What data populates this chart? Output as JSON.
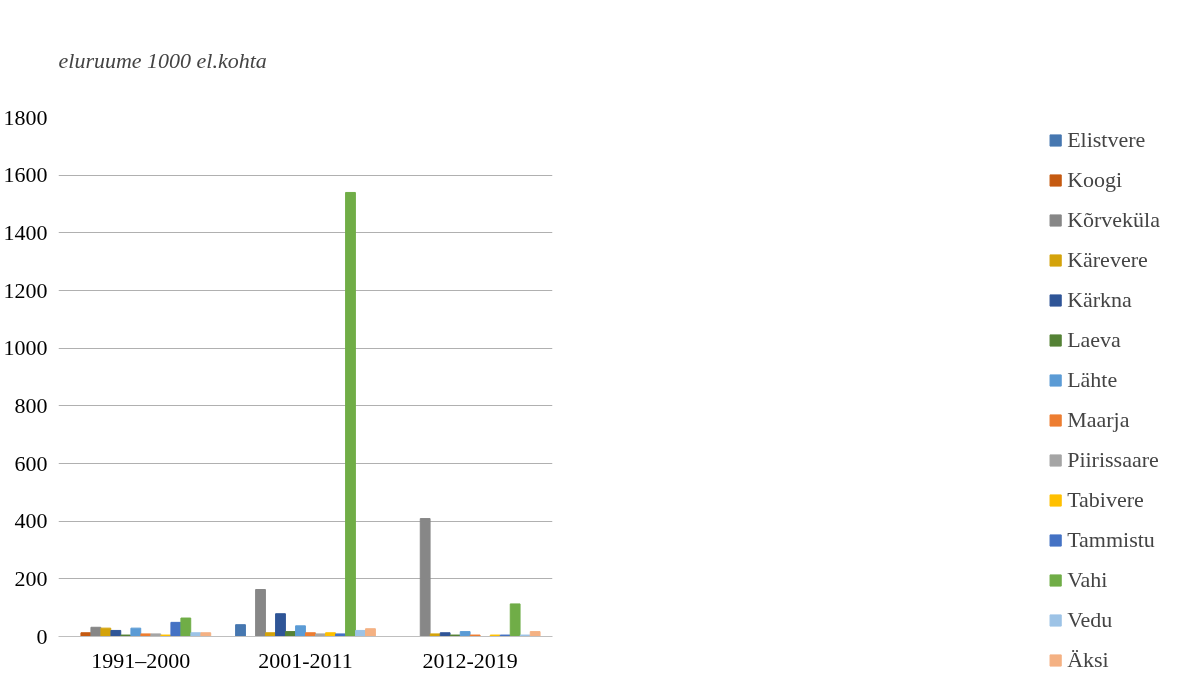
{
  "chart_data": {
    "type": "bar",
    "ylabel": "eluruume 1000 el.kohta",
    "categories": [
      "1991–2000",
      "2001-2011",
      "2012-2019"
    ],
    "series": [
      {
        "name": "Elistvere",
        "color": "#4677b0",
        "values": [
          0,
          41,
          0
        ]
      },
      {
        "name": "Koogi",
        "color": "#c55a11",
        "values": [
          13,
          0,
          0
        ]
      },
      {
        "name": "Kõrveküla",
        "color": "#878787",
        "values": [
          32,
          163,
          409
        ]
      },
      {
        "name": "Kärevere",
        "color": "#d4a30b",
        "values": [
          29,
          13,
          9
        ]
      },
      {
        "name": "Kärkna",
        "color": "#2f5597",
        "values": [
          21,
          79,
          13
        ]
      },
      {
        "name": "Laeva",
        "color": "#548235",
        "values": [
          5,
          17,
          5
        ]
      },
      {
        "name": "Lähte",
        "color": "#5b9bd5",
        "values": [
          29,
          37,
          17
        ]
      },
      {
        "name": "Maarja",
        "color": "#ed7d31",
        "values": [
          9,
          13,
          5
        ]
      },
      {
        "name": "Piirissaare",
        "color": "#a5a5a5",
        "values": [
          9,
          9,
          0
        ]
      },
      {
        "name": "Tabivere",
        "color": "#ffc000",
        "values": [
          5,
          13,
          5
        ]
      },
      {
        "name": "Tammistu",
        "color": "#4472c4",
        "values": [
          49,
          9,
          5
        ]
      },
      {
        "name": "Vahi",
        "color": "#70ad47",
        "values": [
          64,
          1540,
          113
        ]
      },
      {
        "name": "Vedu",
        "color": "#9dc3e6",
        "values": [
          13,
          21,
          5
        ]
      },
      {
        "name": "Äksi",
        "color": "#f4b183",
        "values": [
          13,
          27,
          17
        ]
      }
    ],
    "ylim": [
      0,
      1800
    ],
    "yticks": [
      0,
      200,
      400,
      600,
      800,
      1000,
      1200,
      1400,
      1600,
      1800
    ],
    "grid": "y",
    "legend": "right"
  }
}
